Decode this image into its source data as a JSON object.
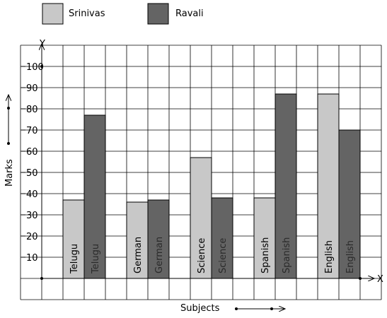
{
  "chart_data": {
    "type": "bar",
    "categories": [
      "Telugu",
      "German",
      "Science",
      "Spanish",
      "English"
    ],
    "series": [
      {
        "name": "Srinivas",
        "values": [
          37,
          36,
          57,
          38,
          87
        ],
        "color": "#c8c8c8"
      },
      {
        "name": "Ravali",
        "values": [
          77,
          37,
          38,
          87,
          70
        ],
        "color": "#646464"
      }
    ],
    "xlabel": "Subjects",
    "ylabel": "Marks",
    "x_axis_letter": "X",
    "y_axis_letter": "Y",
    "ylim": [
      0,
      100
    ],
    "yticks": [
      "10",
      "20",
      "30",
      "40",
      "50",
      "60",
      "70",
      "80",
      "90",
      "100"
    ],
    "ytick_values": [
      10,
      20,
      30,
      40,
      50,
      60,
      70,
      80,
      90,
      100
    ],
    "grid": true,
    "legend_position": "top-left"
  }
}
